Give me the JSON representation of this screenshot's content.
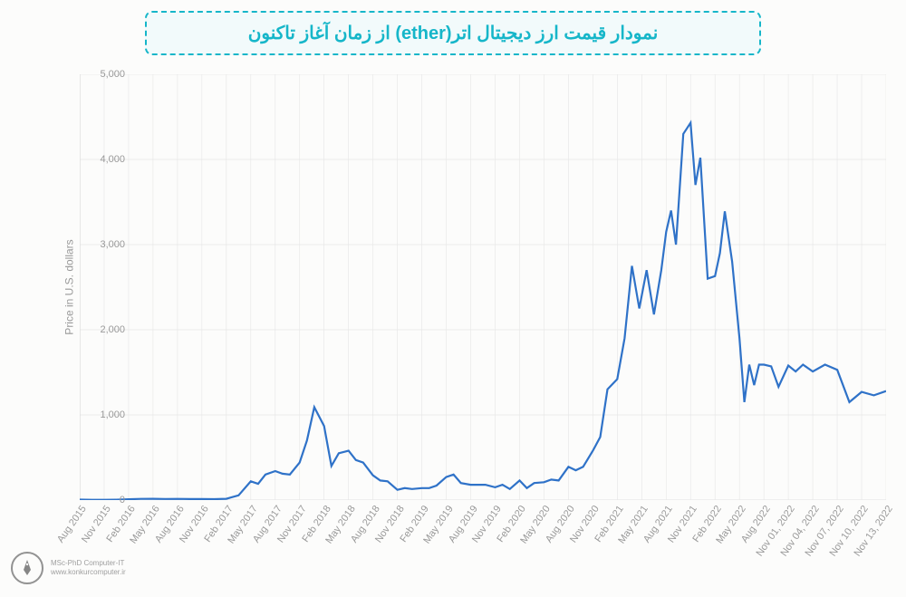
{
  "title": {
    "text": "نمودار قیمت ارز دیجیتال اتر(ether) از زمان آغاز تاکنون",
    "color": "#16b6c9",
    "border_color": "#16b6c9",
    "background": "#f2fafb",
    "fontsize": 20
  },
  "chart": {
    "type": "line",
    "background_color": "#fcfcfb",
    "grid_color": "#e6e6e6",
    "axis_line_color": "#d9d9d9",
    "line_color": "#2f72c8",
    "line_width": 2.2,
    "ylabel": "Price in U.S. dollars",
    "ylim": [
      0,
      5000
    ],
    "ytick_step": 1000,
    "y_ticks": [
      "0",
      "1,000",
      "2,000",
      "3,000",
      "4,000",
      "5,000"
    ],
    "x_labels": [
      "Aug 2015",
      "Nov 2015",
      "Feb 2016",
      "May 2016",
      "Aug 2016",
      "Nov 2016",
      "Feb 2017",
      "May 2017",
      "Aug 2017",
      "Nov 2017",
      "Feb 2018",
      "May 2018",
      "Aug 2018",
      "Nov 2018",
      "Feb 2019",
      "May 2019",
      "Aug 2019",
      "Nov 2019",
      "Feb 2020",
      "May 2020",
      "Aug 2020",
      "Nov 2020",
      "Feb 2021",
      "May 2021",
      "Aug 2021",
      "Nov 2021",
      "Feb 2022",
      "May 2022",
      "Aug 2022",
      "Nov 01, 2022",
      "Nov 04, 2022",
      "Nov 07, 2022",
      "Nov 10, 2022",
      "Nov 13, 2022"
    ],
    "series": [
      {
        "x": 0,
        "y": 5
      },
      {
        "x": 0.5,
        "y": 3
      },
      {
        "x": 1,
        "y": 3
      },
      {
        "x": 1.5,
        "y": 4
      },
      {
        "x": 2,
        "y": 10
      },
      {
        "x": 2.5,
        "y": 14
      },
      {
        "x": 3,
        "y": 15
      },
      {
        "x": 3.5,
        "y": 13
      },
      {
        "x": 4,
        "y": 14
      },
      {
        "x": 4.5,
        "y": 12
      },
      {
        "x": 5,
        "y": 12
      },
      {
        "x": 5.5,
        "y": 11
      },
      {
        "x": 6,
        "y": 15
      },
      {
        "x": 6.5,
        "y": 55
      },
      {
        "x": 7,
        "y": 220
      },
      {
        "x": 7.3,
        "y": 190
      },
      {
        "x": 7.6,
        "y": 300
      },
      {
        "x": 8,
        "y": 340
      },
      {
        "x": 8.3,
        "y": 310
      },
      {
        "x": 8.6,
        "y": 300
      },
      {
        "x": 9,
        "y": 440
      },
      {
        "x": 9.3,
        "y": 700
      },
      {
        "x": 9.6,
        "y": 1090
      },
      {
        "x": 10,
        "y": 870
      },
      {
        "x": 10.3,
        "y": 400
      },
      {
        "x": 10.6,
        "y": 550
      },
      {
        "x": 11,
        "y": 580
      },
      {
        "x": 11.3,
        "y": 470
      },
      {
        "x": 11.6,
        "y": 440
      },
      {
        "x": 12,
        "y": 290
      },
      {
        "x": 12.3,
        "y": 230
      },
      {
        "x": 12.6,
        "y": 220
      },
      {
        "x": 13,
        "y": 120
      },
      {
        "x": 13.3,
        "y": 140
      },
      {
        "x": 13.6,
        "y": 130
      },
      {
        "x": 14,
        "y": 140
      },
      {
        "x": 14.3,
        "y": 140
      },
      {
        "x": 14.6,
        "y": 170
      },
      {
        "x": 15,
        "y": 270
      },
      {
        "x": 15.3,
        "y": 300
      },
      {
        "x": 15.6,
        "y": 200
      },
      {
        "x": 16,
        "y": 180
      },
      {
        "x": 16.3,
        "y": 180
      },
      {
        "x": 16.6,
        "y": 180
      },
      {
        "x": 17,
        "y": 150
      },
      {
        "x": 17.3,
        "y": 180
      },
      {
        "x": 17.6,
        "y": 130
      },
      {
        "x": 18,
        "y": 230
      },
      {
        "x": 18.3,
        "y": 140
      },
      {
        "x": 18.6,
        "y": 200
      },
      {
        "x": 19,
        "y": 210
      },
      {
        "x": 19.3,
        "y": 240
      },
      {
        "x": 19.6,
        "y": 230
      },
      {
        "x": 20,
        "y": 390
      },
      {
        "x": 20.3,
        "y": 350
      },
      {
        "x": 20.6,
        "y": 390
      },
      {
        "x": 21,
        "y": 580
      },
      {
        "x": 21.3,
        "y": 740
      },
      {
        "x": 21.6,
        "y": 1300
      },
      {
        "x": 22,
        "y": 1420
      },
      {
        "x": 22.3,
        "y": 1900
      },
      {
        "x": 22.6,
        "y": 2750
      },
      {
        "x": 22.9,
        "y": 2250
      },
      {
        "x": 23.2,
        "y": 2700
      },
      {
        "x": 23.5,
        "y": 2180
      },
      {
        "x": 23.8,
        "y": 2700
      },
      {
        "x": 24,
        "y": 3150
      },
      {
        "x": 24.2,
        "y": 3400
      },
      {
        "x": 24.4,
        "y": 3000
      },
      {
        "x": 24.7,
        "y": 4300
      },
      {
        "x": 25,
        "y": 4430
      },
      {
        "x": 25.2,
        "y": 3700
      },
      {
        "x": 25.4,
        "y": 4020
      },
      {
        "x": 25.7,
        "y": 2600
      },
      {
        "x": 26,
        "y": 2630
      },
      {
        "x": 26.2,
        "y": 2900
      },
      {
        "x": 26.4,
        "y": 3390
      },
      {
        "x": 26.7,
        "y": 2800
      },
      {
        "x": 27,
        "y": 1900
      },
      {
        "x": 27.2,
        "y": 1150
      },
      {
        "x": 27.4,
        "y": 1590
      },
      {
        "x": 27.6,
        "y": 1350
      },
      {
        "x": 27.8,
        "y": 1590
      },
      {
        "x": 28,
        "y": 1590
      },
      {
        "x": 28.3,
        "y": 1570
      },
      {
        "x": 28.6,
        "y": 1330
      },
      {
        "x": 29,
        "y": 1580
      },
      {
        "x": 29.3,
        "y": 1510
      },
      {
        "x": 29.6,
        "y": 1590
      },
      {
        "x": 30,
        "y": 1510
      },
      {
        "x": 30.5,
        "y": 1590
      },
      {
        "x": 31,
        "y": 1530
      },
      {
        "x": 31.5,
        "y": 1150
      },
      {
        "x": 32,
        "y": 1270
      },
      {
        "x": 32.5,
        "y": 1230
      },
      {
        "x": 33,
        "y": 1280
      }
    ],
    "x_domain_max": 33
  },
  "watermark": {
    "line1": "MSc-PhD Computer-IT",
    "line2": "www.konkurcomputer.ir"
  }
}
